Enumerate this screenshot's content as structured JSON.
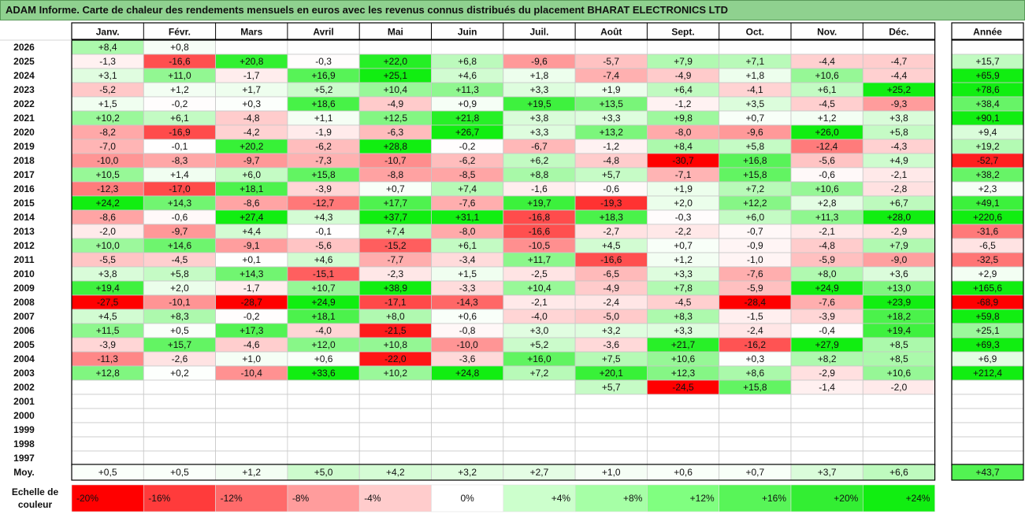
{
  "title": "ADAM Informe. Carte de chaleur des rendements mensuels en euros avec les revenus connus distribués du placement BHARAT ELECTRONICS LTD",
  "chart_data": {
    "type": "heatmap",
    "months": [
      "Janv.",
      "Févr.",
      "Mars",
      "Avril",
      "Mai",
      "Juin",
      "Juil.",
      "Août",
      "Sept.",
      "Oct.",
      "Nov.",
      "Déc."
    ],
    "year_header": "Année",
    "rows": [
      {
        "year": "2026",
        "values": [
          8.4,
          0.8,
          null,
          null,
          null,
          null,
          null,
          null,
          null,
          null,
          null,
          null
        ],
        "annual": null
      },
      {
        "year": "2025",
        "values": [
          -1.3,
          -16.6,
          20.8,
          -0.3,
          22.0,
          6.8,
          -9.6,
          -5.7,
          7.9,
          7.1,
          -4.4,
          -4.7
        ],
        "annual": 15.7
      },
      {
        "year": "2024",
        "values": [
          3.1,
          11.0,
          -1.7,
          16.9,
          25.1,
          4.6,
          1.8,
          -7.4,
          -4.9,
          1.8,
          10.6,
          -4.4
        ],
        "annual": 65.9
      },
      {
        "year": "2023",
        "values": [
          -5.2,
          1.2,
          1.7,
          5.2,
          10.4,
          11.3,
          3.3,
          1.9,
          6.4,
          -4.1,
          6.1,
          25.2
        ],
        "annual": 78.6
      },
      {
        "year": "2022",
        "values": [
          1.5,
          -0.2,
          0.3,
          18.6,
          -4.9,
          0.9,
          19.5,
          13.5,
          -1.2,
          3.5,
          -4.5,
          -9.3
        ],
        "annual": 38.4
      },
      {
        "year": "2021",
        "values": [
          10.2,
          6.1,
          -4.8,
          1.1,
          12.5,
          21.8,
          3.8,
          3.3,
          9.8,
          0.7,
          1.2,
          3.8
        ],
        "annual": 90.1
      },
      {
        "year": "2020",
        "values": [
          -8.2,
          -16.9,
          -4.2,
          -1.9,
          -6.3,
          26.7,
          3.3,
          13.2,
          -8.0,
          -9.6,
          26.0,
          5.8
        ],
        "annual": 9.4
      },
      {
        "year": "2019",
        "values": [
          -7.0,
          -0.1,
          20.2,
          -6.2,
          28.8,
          -0.2,
          -6.7,
          -1.2,
          8.4,
          5.8,
          -12.4,
          -4.3
        ],
        "annual": 19.2
      },
      {
        "year": "2018",
        "values": [
          -10.0,
          -8.3,
          -9.7,
          -7.3,
          -10.7,
          -6.2,
          6.2,
          -4.8,
          -30.7,
          16.8,
          -5.6,
          4.9
        ],
        "annual": -52.7
      },
      {
        "year": "2017",
        "values": [
          10.5,
          1.4,
          6.0,
          15.8,
          -8.8,
          -8.5,
          8.8,
          5.7,
          -7.1,
          15.8,
          -0.6,
          -2.1
        ],
        "annual": 38.2
      },
      {
        "year": "2016",
        "values": [
          -12.3,
          -17.0,
          18.1,
          -3.9,
          0.7,
          7.4,
          -1.6,
          -0.6,
          1.9,
          7.2,
          10.6,
          -2.8
        ],
        "annual": 2.3
      },
      {
        "year": "2015",
        "values": [
          24.2,
          14.3,
          -8.6,
          -12.7,
          17.7,
          -7.6,
          19.7,
          -19.3,
          2.0,
          12.2,
          2.8,
          6.7
        ],
        "annual": 49.1
      },
      {
        "year": "2014",
        "values": [
          -8.6,
          -0.6,
          27.4,
          4.3,
          37.7,
          31.1,
          -16.8,
          18.3,
          -0.3,
          6.0,
          11.3,
          28.0
        ],
        "annual": 220.6
      },
      {
        "year": "2013",
        "values": [
          -2.0,
          -9.7,
          4.4,
          -0.1,
          7.4,
          -8.0,
          -16.6,
          -2.7,
          -2.2,
          -0.7,
          -2.1,
          -2.9
        ],
        "annual": -31.6
      },
      {
        "year": "2012",
        "values": [
          10.0,
          14.6,
          -9.1,
          -5.6,
          -15.2,
          6.1,
          -10.5,
          4.5,
          0.7,
          -0.9,
          -4.8,
          7.9
        ],
        "annual": -6.5
      },
      {
        "year": "2011",
        "values": [
          -5.5,
          -4.5,
          0.1,
          4.6,
          -7.7,
          -3.4,
          11.7,
          -16.6,
          1.2,
          -1.0,
          -5.9,
          -9.0
        ],
        "annual": -32.5
      },
      {
        "year": "2010",
        "values": [
          3.8,
          5.8,
          14.3,
          -15.1,
          -2.3,
          1.5,
          -2.5,
          -6.5,
          3.3,
          -7.6,
          8.0,
          3.6
        ],
        "annual": 2.9
      },
      {
        "year": "2009",
        "values": [
          19.4,
          2.0,
          -1.7,
          10.7,
          38.9,
          -3.3,
          10.4,
          -4.9,
          7.8,
          -5.9,
          24.9,
          13.0
        ],
        "annual": 165.6
      },
      {
        "year": "2008",
        "values": [
          -27.5,
          -10.1,
          -28.7,
          24.9,
          -17.1,
          -14.3,
          -2.1,
          -2.4,
          -4.5,
          -28.4,
          -7.6,
          23.9
        ],
        "annual": -68.9
      },
      {
        "year": "2007",
        "values": [
          4.5,
          8.3,
          -0.2,
          18.1,
          8.0,
          0.6,
          -4.0,
          -5.0,
          8.3,
          -1.5,
          -3.9,
          18.2
        ],
        "annual": 59.8
      },
      {
        "year": "2006",
        "values": [
          11.5,
          0.5,
          17.3,
          -4.0,
          -21.5,
          -0.8,
          3.0,
          3.2,
          3.3,
          -2.4,
          -0.4,
          19.4
        ],
        "annual": 25.1
      },
      {
        "year": "2005",
        "values": [
          -3.9,
          15.7,
          -4.6,
          12.0,
          10.8,
          -10.0,
          5.2,
          -3.6,
          21.7,
          -16.2,
          27.9,
          8.5
        ],
        "annual": 69.3
      },
      {
        "year": "2004",
        "values": [
          -11.3,
          -2.6,
          1.0,
          0.6,
          -22.0,
          -3.6,
          16.0,
          7.5,
          10.6,
          0.3,
          8.2,
          8.5
        ],
        "annual": 6.9
      },
      {
        "year": "2003",
        "values": [
          12.8,
          0.2,
          -10.4,
          33.6,
          10.2,
          24.8,
          7.2,
          20.1,
          12.3,
          8.6,
          -2.9,
          10.6
        ],
        "annual": 212.4
      },
      {
        "year": "2002",
        "values": [
          null,
          null,
          null,
          null,
          null,
          null,
          null,
          5.7,
          -24.5,
          15.8,
          -1.4,
          -2.0
        ],
        "annual": null
      },
      {
        "year": "2001",
        "values": [
          null,
          null,
          null,
          null,
          null,
          null,
          null,
          null,
          null,
          null,
          null,
          null
        ],
        "annual": null
      },
      {
        "year": "2000",
        "values": [
          null,
          null,
          null,
          null,
          null,
          null,
          null,
          null,
          null,
          null,
          null,
          null
        ],
        "annual": null
      },
      {
        "year": "1999",
        "values": [
          null,
          null,
          null,
          null,
          null,
          null,
          null,
          null,
          null,
          null,
          null,
          null
        ],
        "annual": null
      },
      {
        "year": "1998",
        "values": [
          null,
          null,
          null,
          null,
          null,
          null,
          null,
          null,
          null,
          null,
          null,
          null
        ],
        "annual": null
      },
      {
        "year": "1997",
        "values": [
          null,
          null,
          null,
          null,
          null,
          null,
          null,
          null,
          null,
          null,
          null,
          null
        ],
        "annual": null
      }
    ],
    "average_label": "Moy.",
    "average_values": [
      0.5,
      0.5,
      1.2,
      5.0,
      4.2,
      3.2,
      2.7,
      1.0,
      0.6,
      0.7,
      3.7,
      6.6
    ],
    "average_annual": 43.7,
    "scale_label": "Echelle de couleur",
    "scale_steps": [
      {
        "label": "-20%",
        "value": -20,
        "color": "#ff0000"
      },
      {
        "label": "-16%",
        "value": -16,
        "color": "#ff3b3b"
      },
      {
        "label": "-12%",
        "value": -12,
        "color": "#ff6a6a"
      },
      {
        "label": "-8%",
        "value": -8,
        "color": "#ff9c9c"
      },
      {
        "label": "-4%",
        "value": -4,
        "color": "#ffcccc"
      },
      {
        "label": "0%",
        "value": 0,
        "color": "#ffffff"
      },
      {
        "label": "+4%",
        "value": 4,
        "color": "#ccffcc"
      },
      {
        "label": "+8%",
        "value": 8,
        "color": "#a6ffa6"
      },
      {
        "label": "+12%",
        "value": 12,
        "color": "#80ff80"
      },
      {
        "label": "+16%",
        "value": 16,
        "color": "#58f558"
      },
      {
        "label": "+20%",
        "value": 20,
        "color": "#33ee33"
      },
      {
        "label": "+24%",
        "value": 24,
        "color": "#11ee11"
      }
    ],
    "annual_scale_max": 60,
    "grid": true,
    "legend_placement": "bottom"
  }
}
